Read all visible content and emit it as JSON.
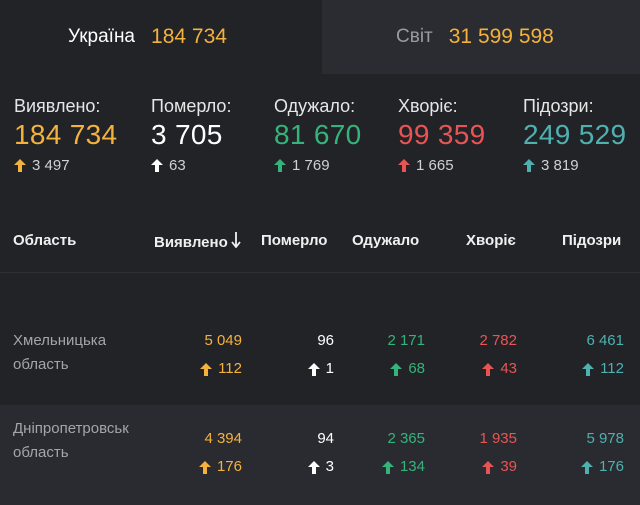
{
  "tabs": {
    "ukraine": {
      "label": "Україна",
      "value": "184 734"
    },
    "world": {
      "label": "Світ",
      "value": "31 599 598"
    }
  },
  "summary": [
    {
      "label": "Виявлено:",
      "value": "184 734",
      "delta": "3 497",
      "color": "#f4b23c"
    },
    {
      "label": "Померло:",
      "value": "3 705",
      "delta": "63",
      "color": "#ffffff"
    },
    {
      "label": "Одужало:",
      "value": "81 670",
      "delta": "1 769",
      "color": "#34b37a"
    },
    {
      "label": "Хворіє:",
      "value": "99 359",
      "delta": "1 665",
      "color": "#e85454"
    },
    {
      "label": "Підозри:",
      "value": "249 529",
      "delta": "3 819",
      "color": "#4fb0b0"
    }
  ],
  "table": {
    "headers": {
      "region": "Область",
      "detected": "Виявлено",
      "sort_icon": "arrow-down-icon",
      "died": "Померло",
      "recovered": "Одужало",
      "sick": "Хворіє",
      "suspected": "Підозри"
    },
    "rows": [
      {
        "region_line1": "Хмельницька",
        "region_line2": "область",
        "detected": "5 049",
        "detected_delta": "112",
        "died": "96",
        "died_delta": "1",
        "recovered": "2 171",
        "recovered_delta": "68",
        "sick": "2 782",
        "sick_delta": "43",
        "suspected": "6 461",
        "suspected_delta": "112"
      },
      {
        "region_line1": "Дніпропетровськ",
        "region_line2": "область",
        "detected": "4 394",
        "detected_delta": "176",
        "died": "94",
        "died_delta": "3",
        "recovered": "2 365",
        "recovered_delta": "134",
        "sick": "1 935",
        "sick_delta": "39",
        "suspected": "5 978",
        "suspected_delta": "176"
      }
    ]
  }
}
